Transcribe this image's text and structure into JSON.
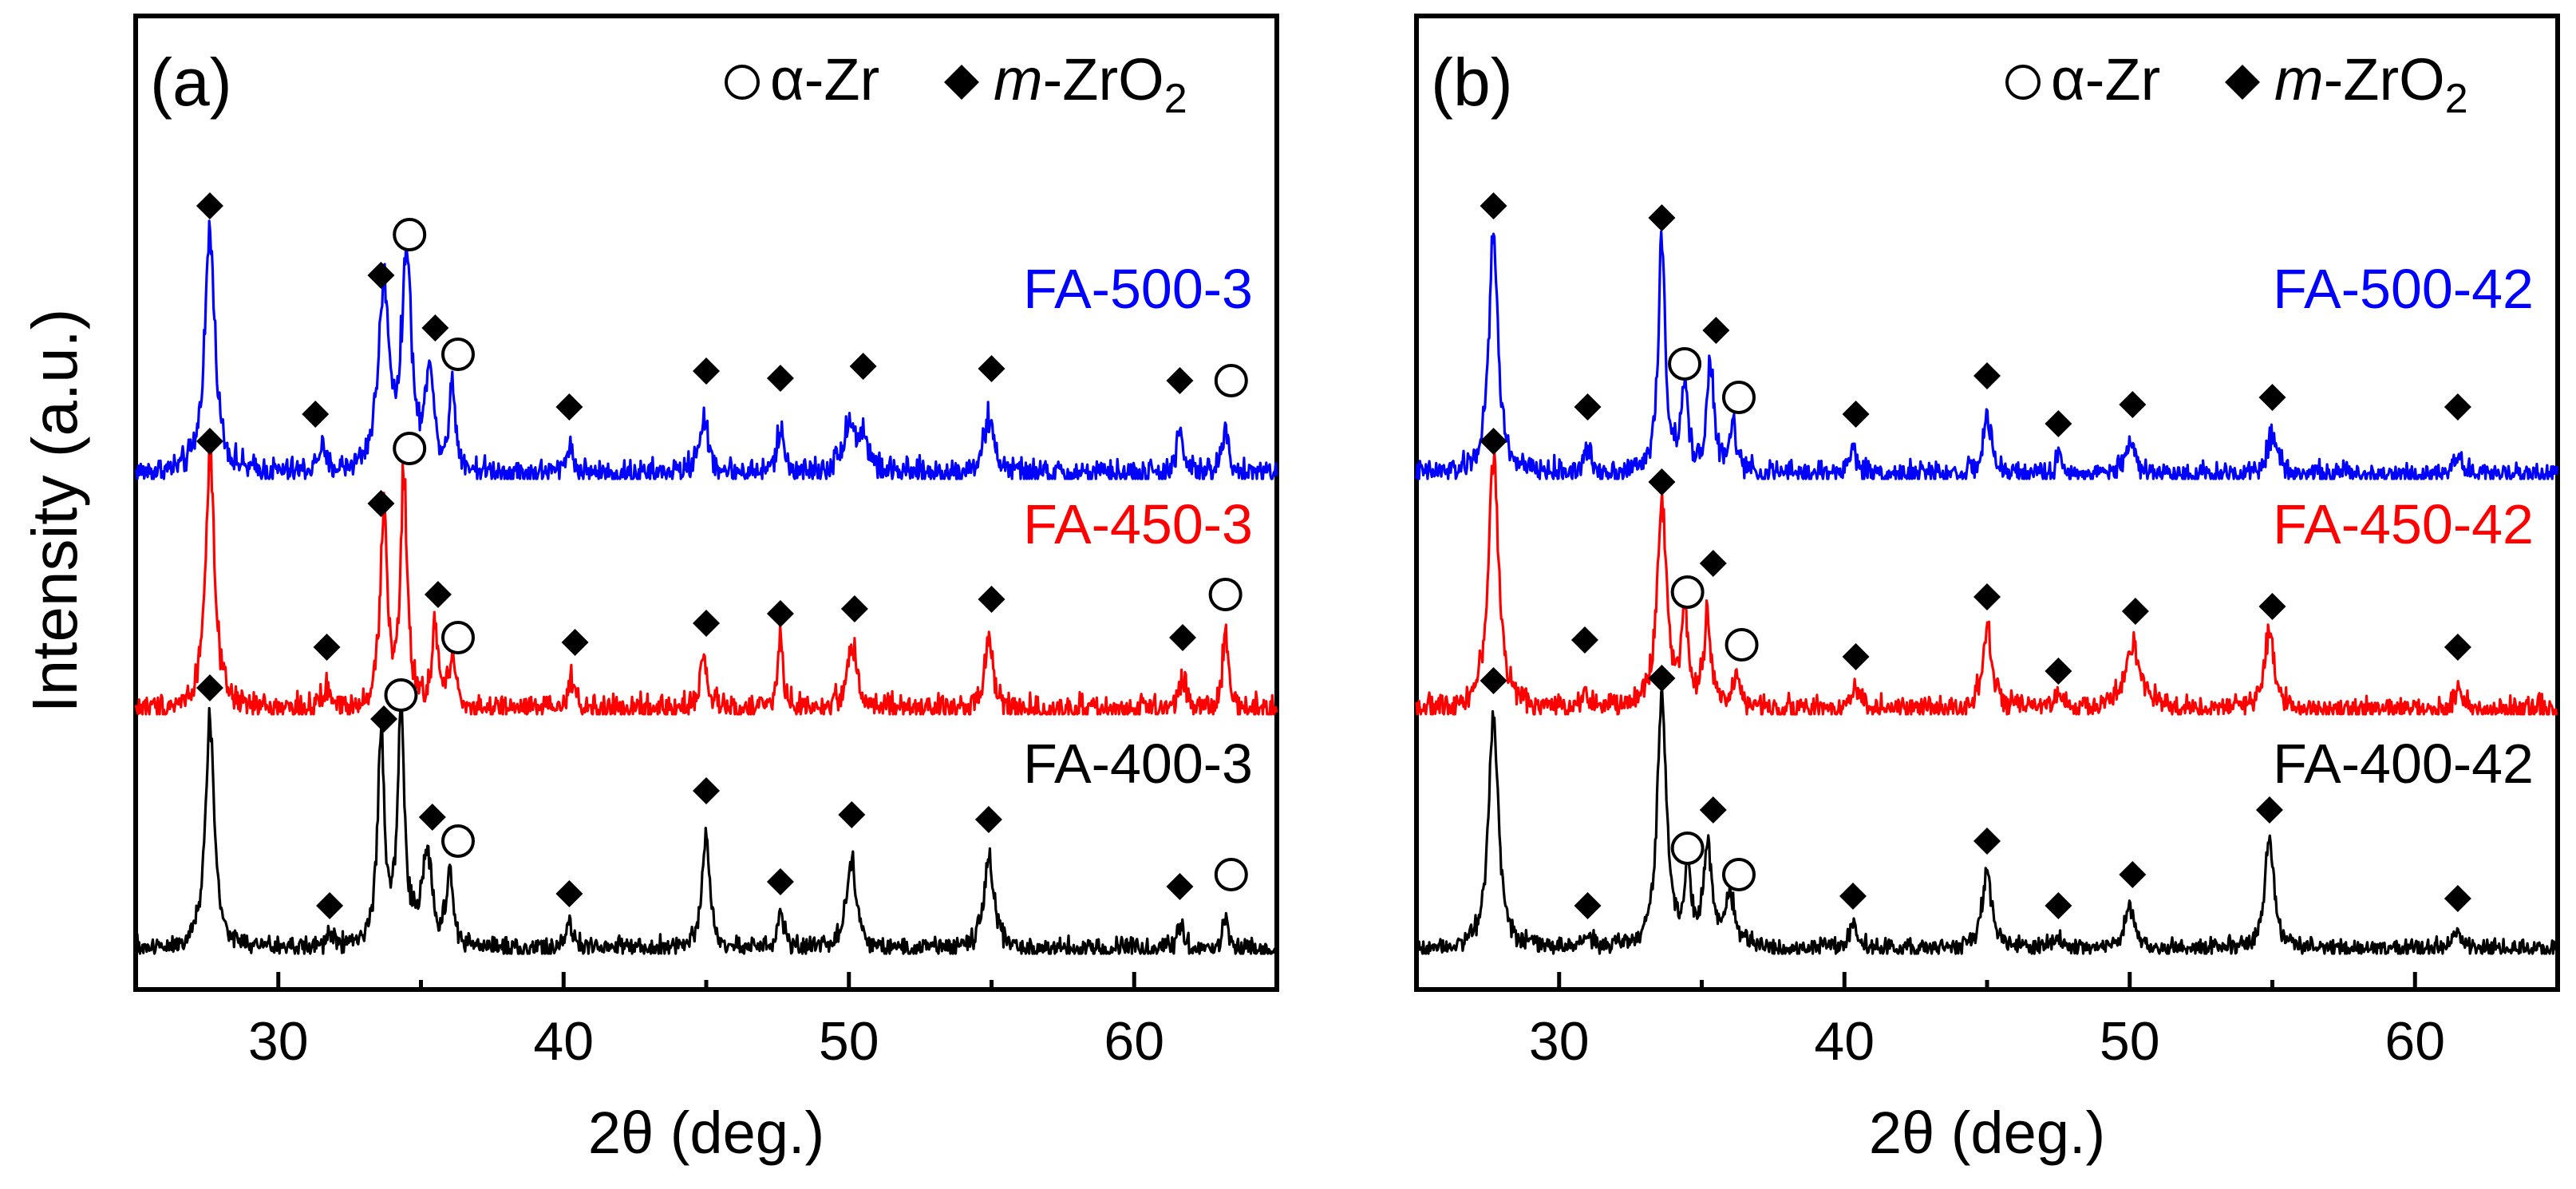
{
  "figure": {
    "ylabel": "Intensity (a.u.)",
    "legend": {
      "alpha_zr": "α-Zr",
      "m_zro2_prefix": "m",
      "m_zro2_main": "-ZrO",
      "m_zro2_sub": "2"
    }
  },
  "colors": {
    "axis": "#000000",
    "trace_500": "#0000ff",
    "trace_450": "#ff0000",
    "trace_400": "#000000"
  },
  "chart_data": [
    {
      "type": "line",
      "panel_label": "(a)",
      "xlabel": "2θ (deg.)",
      "ylabel": "Intensity (a.u.)",
      "xlim": [
        25,
        65
      ],
      "xticks": [
        30,
        40,
        50,
        60
      ],
      "grid": false,
      "legend_position": "top-right",
      "series": [
        {
          "name": "FA-500-3",
          "color": "#0000ff",
          "offset": 2,
          "noise": 0.09,
          "peaks": [
            {
              "x": 27.6,
              "h": 1.0,
              "w": 0.32
            },
            {
              "x": 33.7,
              "h": 0.75,
              "w": 0.35
            },
            {
              "x": 34.5,
              "h": 0.9,
              "w": 0.28
            },
            {
              "x": 35.3,
              "h": 0.45,
              "w": 0.22
            },
            {
              "x": 36.1,
              "h": 0.35,
              "w": 0.2
            },
            {
              "x": 31.5,
              "h": 0.1,
              "w": 0.2
            },
            {
              "x": 40.2,
              "h": 0.12,
              "w": 0.2
            },
            {
              "x": 44.9,
              "h": 0.22,
              "w": 0.3
            },
            {
              "x": 47.6,
              "h": 0.18,
              "w": 0.22
            },
            {
              "x": 50.0,
              "h": 0.2,
              "w": 0.4
            },
            {
              "x": 50.5,
              "h": 0.14,
              "w": 0.3
            },
            {
              "x": 54.9,
              "h": 0.22,
              "w": 0.35
            },
            {
              "x": 61.6,
              "h": 0.16,
              "w": 0.22
            },
            {
              "x": 63.2,
              "h": 0.2,
              "w": 0.2
            }
          ],
          "markers": [
            {
              "symbol": "diamond",
              "x": 27.6,
              "y": 1.14
            },
            {
              "symbol": "diamond",
              "x": 33.6,
              "y": 0.85
            },
            {
              "symbol": "circle",
              "x": 34.6,
              "y": 1.02
            },
            {
              "symbol": "diamond",
              "x": 35.5,
              "y": 0.63
            },
            {
              "symbol": "circle",
              "x": 36.3,
              "y": 0.52
            },
            {
              "symbol": "diamond",
              "x": 31.3,
              "y": 0.27
            },
            {
              "symbol": "diamond",
              "x": 40.2,
              "y": 0.3
            },
            {
              "symbol": "diamond",
              "x": 45.0,
              "y": 0.45
            },
            {
              "symbol": "diamond",
              "x": 47.6,
              "y": 0.42
            },
            {
              "symbol": "diamond",
              "x": 50.5,
              "y": 0.47
            },
            {
              "symbol": "diamond",
              "x": 55.0,
              "y": 0.46
            },
            {
              "symbol": "diamond",
              "x": 61.6,
              "y": 0.41
            },
            {
              "symbol": "circle",
              "x": 63.4,
              "y": 0.41
            }
          ]
        },
        {
          "name": "FA-450-3",
          "color": "#ff0000",
          "offset": 1,
          "noise": 0.09,
          "peaks": [
            {
              "x": 27.6,
              "h": 1.05,
              "w": 0.28
            },
            {
              "x": 33.7,
              "h": 0.82,
              "w": 0.22
            },
            {
              "x": 34.4,
              "h": 0.95,
              "w": 0.2
            },
            {
              "x": 35.5,
              "h": 0.32,
              "w": 0.2
            },
            {
              "x": 36.1,
              "h": 0.22,
              "w": 0.2
            },
            {
              "x": 31.7,
              "h": 0.08,
              "w": 0.2
            },
            {
              "x": 40.3,
              "h": 0.12,
              "w": 0.2
            },
            {
              "x": 44.9,
              "h": 0.2,
              "w": 0.25
            },
            {
              "x": 47.6,
              "h": 0.28,
              "w": 0.18
            },
            {
              "x": 50.1,
              "h": 0.28,
              "w": 0.3
            },
            {
              "x": 54.9,
              "h": 0.32,
              "w": 0.25
            },
            {
              "x": 61.7,
              "h": 0.14,
              "w": 0.2
            },
            {
              "x": 63.2,
              "h": 0.35,
              "w": 0.16
            }
          ],
          "markers": [
            {
              "symbol": "diamond",
              "x": 27.6,
              "y": 1.14
            },
            {
              "symbol": "diamond",
              "x": 33.6,
              "y": 0.88
            },
            {
              "symbol": "circle",
              "x": 34.6,
              "y": 1.11
            },
            {
              "symbol": "diamond",
              "x": 35.6,
              "y": 0.5
            },
            {
              "symbol": "circle",
              "x": 36.3,
              "y": 0.32
            },
            {
              "symbol": "diamond",
              "x": 31.7,
              "y": 0.28
            },
            {
              "symbol": "diamond",
              "x": 40.4,
              "y": 0.3
            },
            {
              "symbol": "diamond",
              "x": 45.0,
              "y": 0.38
            },
            {
              "symbol": "diamond",
              "x": 47.6,
              "y": 0.42
            },
            {
              "symbol": "diamond",
              "x": 50.2,
              "y": 0.44
            },
            {
              "symbol": "diamond",
              "x": 55.0,
              "y": 0.48
            },
            {
              "symbol": "diamond",
              "x": 61.7,
              "y": 0.32
            },
            {
              "symbol": "circle",
              "x": 63.2,
              "y": 0.5
            }
          ]
        },
        {
          "name": "FA-400-3",
          "color": "#000000",
          "offset": 0,
          "noise": 0.07,
          "peaks": [
            {
              "x": 27.6,
              "h": 0.95,
              "w": 0.28
            },
            {
              "x": 33.6,
              "h": 0.85,
              "w": 0.22
            },
            {
              "x": 34.3,
              "h": 0.95,
              "w": 0.22
            },
            {
              "x": 35.2,
              "h": 0.4,
              "w": 0.3
            },
            {
              "x": 36.0,
              "h": 0.3,
              "w": 0.2
            },
            {
              "x": 31.8,
              "h": 0.06,
              "w": 0.2
            },
            {
              "x": 40.2,
              "h": 0.1,
              "w": 0.2
            },
            {
              "x": 45.0,
              "h": 0.5,
              "w": 0.22
            },
            {
              "x": 47.6,
              "h": 0.15,
              "w": 0.2
            },
            {
              "x": 50.1,
              "h": 0.38,
              "w": 0.3
            },
            {
              "x": 54.9,
              "h": 0.38,
              "w": 0.3
            },
            {
              "x": 61.6,
              "h": 0.1,
              "w": 0.2
            },
            {
              "x": 63.2,
              "h": 0.14,
              "w": 0.16
            }
          ],
          "markers": [
            {
              "symbol": "diamond",
              "x": 27.6,
              "y": 1.11
            },
            {
              "symbol": "diamond",
              "x": 33.7,
              "y": 0.98
            },
            {
              "symbol": "circle",
              "x": 34.3,
              "y": 1.08
            },
            {
              "symbol": "diamond",
              "x": 35.4,
              "y": 0.57
            },
            {
              "symbol": "circle",
              "x": 36.3,
              "y": 0.47
            },
            {
              "symbol": "diamond",
              "x": 31.8,
              "y": 0.2
            },
            {
              "symbol": "diamond",
              "x": 40.2,
              "y": 0.25
            },
            {
              "symbol": "diamond",
              "x": 45.0,
              "y": 0.68
            },
            {
              "symbol": "diamond",
              "x": 47.6,
              "y": 0.3
            },
            {
              "symbol": "diamond",
              "x": 50.1,
              "y": 0.58
            },
            {
              "symbol": "diamond",
              "x": 54.9,
              "y": 0.56
            },
            {
              "symbol": "diamond",
              "x": 61.6,
              "y": 0.28
            },
            {
              "symbol": "circle",
              "x": 63.4,
              "y": 0.33
            }
          ]
        }
      ]
    },
    {
      "type": "line",
      "panel_label": "(b)",
      "xlabel": "2θ (deg.)",
      "ylabel": "Intensity (a.u.)",
      "xlim": [
        25,
        65
      ],
      "xticks": [
        30,
        40,
        50,
        60
      ],
      "grid": false,
      "legend_position": "top-right",
      "series": [
        {
          "name": "FA-500-42",
          "color": "#0000ff",
          "offset": 2,
          "noise": 0.08,
          "peaks": [
            {
              "x": 27.7,
              "h": 1.0,
              "w": 0.28
            },
            {
              "x": 33.6,
              "h": 0.95,
              "w": 0.22
            },
            {
              "x": 34.4,
              "h": 0.35,
              "w": 0.2
            },
            {
              "x": 35.3,
              "h": 0.45,
              "w": 0.22
            },
            {
              "x": 36.1,
              "h": 0.2,
              "w": 0.2
            },
            {
              "x": 31.0,
              "h": 0.1,
              "w": 0.2
            },
            {
              "x": 40.3,
              "h": 0.1,
              "w": 0.25
            },
            {
              "x": 45.0,
              "h": 0.25,
              "w": 0.22
            },
            {
              "x": 47.5,
              "h": 0.06,
              "w": 0.2
            },
            {
              "x": 50.0,
              "h": 0.14,
              "w": 0.3
            },
            {
              "x": 55.0,
              "h": 0.16,
              "w": 0.35
            },
            {
              "x": 61.5,
              "h": 0.1,
              "w": 0.2
            }
          ],
          "markers": [
            {
              "symbol": "diamond",
              "x": 27.7,
              "y": 1.14
            },
            {
              "symbol": "diamond",
              "x": 33.6,
              "y": 1.09
            },
            {
              "symbol": "circle",
              "x": 34.4,
              "y": 0.48
            },
            {
              "symbol": "diamond",
              "x": 35.5,
              "y": 0.62
            },
            {
              "symbol": "circle",
              "x": 36.3,
              "y": 0.34
            },
            {
              "symbol": "diamond",
              "x": 31.0,
              "y": 0.3
            },
            {
              "symbol": "diamond",
              "x": 40.4,
              "y": 0.27
            },
            {
              "symbol": "diamond",
              "x": 45.0,
              "y": 0.43
            },
            {
              "symbol": "diamond",
              "x": 47.5,
              "y": 0.23
            },
            {
              "symbol": "diamond",
              "x": 50.1,
              "y": 0.31
            },
            {
              "symbol": "diamond",
              "x": 55.0,
              "y": 0.34
            },
            {
              "symbol": "diamond",
              "x": 61.5,
              "y": 0.3
            }
          ]
        },
        {
          "name": "FA-450-42",
          "color": "#ff0000",
          "offset": 1,
          "noise": 0.08,
          "peaks": [
            {
              "x": 27.7,
              "h": 1.05,
              "w": 0.32
            },
            {
              "x": 33.6,
              "h": 0.85,
              "w": 0.3
            },
            {
              "x": 34.4,
              "h": 0.4,
              "w": 0.2
            },
            {
              "x": 35.2,
              "h": 0.4,
              "w": 0.2
            },
            {
              "x": 36.2,
              "h": 0.15,
              "w": 0.2
            },
            {
              "x": 30.9,
              "h": 0.08,
              "w": 0.2
            },
            {
              "x": 40.4,
              "h": 0.1,
              "w": 0.25
            },
            {
              "x": 45.0,
              "h": 0.35,
              "w": 0.28
            },
            {
              "x": 47.5,
              "h": 0.06,
              "w": 0.2
            },
            {
              "x": 50.1,
              "h": 0.28,
              "w": 0.45
            },
            {
              "x": 54.9,
              "h": 0.32,
              "w": 0.32
            },
            {
              "x": 61.5,
              "h": 0.08,
              "w": 0.25
            }
          ],
          "markers": [
            {
              "symbol": "diamond",
              "x": 27.7,
              "y": 1.14
            },
            {
              "symbol": "diamond",
              "x": 33.6,
              "y": 0.97
            },
            {
              "symbol": "circle",
              "x": 34.5,
              "y": 0.51
            },
            {
              "symbol": "diamond",
              "x": 35.4,
              "y": 0.63
            },
            {
              "symbol": "circle",
              "x": 36.4,
              "y": 0.29
            },
            {
              "symbol": "diamond",
              "x": 30.9,
              "y": 0.31
            },
            {
              "symbol": "diamond",
              "x": 40.4,
              "y": 0.24
            },
            {
              "symbol": "diamond",
              "x": 45.0,
              "y": 0.49
            },
            {
              "symbol": "diamond",
              "x": 47.5,
              "y": 0.18
            },
            {
              "symbol": "diamond",
              "x": 50.2,
              "y": 0.43
            },
            {
              "symbol": "diamond",
              "x": 55.0,
              "y": 0.45
            },
            {
              "symbol": "diamond",
              "x": 61.5,
              "y": 0.28
            }
          ]
        },
        {
          "name": "FA-400-42",
          "color": "#000000",
          "offset": 0,
          "noise": 0.06,
          "peaks": [
            {
              "x": 27.7,
              "h": 1.0,
              "w": 0.3
            },
            {
              "x": 33.6,
              "h": 1.05,
              "w": 0.28
            },
            {
              "x": 34.5,
              "h": 0.3,
              "w": 0.2
            },
            {
              "x": 35.2,
              "h": 0.4,
              "w": 0.28
            },
            {
              "x": 36.0,
              "h": 0.2,
              "w": 0.3
            },
            {
              "x": 31.0,
              "h": 0.06,
              "w": 0.2
            },
            {
              "x": 40.3,
              "h": 0.1,
              "w": 0.25
            },
            {
              "x": 45.0,
              "h": 0.32,
              "w": 0.3
            },
            {
              "x": 47.5,
              "h": 0.06,
              "w": 0.2
            },
            {
              "x": 50.0,
              "h": 0.18,
              "w": 0.3
            },
            {
              "x": 54.9,
              "h": 0.45,
              "w": 0.3
            },
            {
              "x": 61.5,
              "h": 0.08,
              "w": 0.25
            }
          ],
          "markers": [
            {
              "symbol": "diamond",
              "x": 27.7,
              "y": 1.14
            },
            {
              "symbol": "diamond",
              "x": 33.6,
              "y": 1.15
            },
            {
              "symbol": "circle",
              "x": 34.5,
              "y": 0.44
            },
            {
              "symbol": "diamond",
              "x": 35.4,
              "y": 0.6
            },
            {
              "symbol": "circle",
              "x": 36.3,
              "y": 0.33
            },
            {
              "symbol": "diamond",
              "x": 31.0,
              "y": 0.2
            },
            {
              "symbol": "diamond",
              "x": 40.3,
              "y": 0.24
            },
            {
              "symbol": "diamond",
              "x": 45.0,
              "y": 0.47
            },
            {
              "symbol": "diamond",
              "x": 47.5,
              "y": 0.2
            },
            {
              "symbol": "diamond",
              "x": 50.1,
              "y": 0.33
            },
            {
              "symbol": "diamond",
              "x": 54.9,
              "y": 0.6
            },
            {
              "symbol": "diamond",
              "x": 61.5,
              "y": 0.23
            }
          ]
        }
      ]
    }
  ]
}
